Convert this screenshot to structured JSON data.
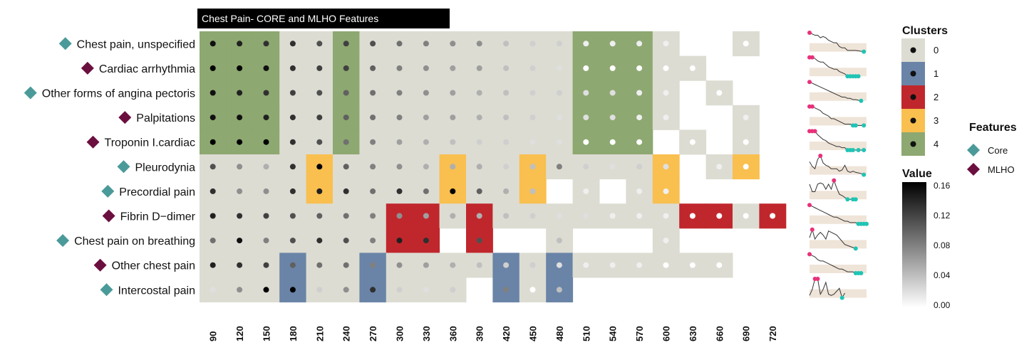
{
  "chart_data": {
    "type": "heatmap",
    "title": "Chest Pain- CORE and MLHO Features",
    "x_categories": [
      "90",
      "120",
      "150",
      "180",
      "210",
      "240",
      "270",
      "300",
      "330",
      "360",
      "390",
      "420",
      "450",
      "480",
      "510",
      "540",
      "570",
      "600",
      "630",
      "660",
      "690",
      "720"
    ],
    "rows": [
      {
        "label": "Chest pain, unspecified",
        "feature": "Core",
        "clusters": [
          4,
          4,
          4,
          0,
          0,
          4,
          0,
          0,
          0,
          0,
          0,
          0,
          0,
          0,
          4,
          4,
          4,
          0,
          null,
          null,
          0,
          null
        ],
        "values": [
          0.15,
          0.14,
          0.13,
          0.13,
          0.11,
          0.12,
          0.11,
          0.09,
          0.08,
          0.07,
          0.07,
          0.04,
          0.03,
          0.03,
          0.01,
          0.01,
          0.01,
          0.01,
          null,
          null,
          0.0,
          null
        ]
      },
      {
        "label": "Cardiac arrhythmia",
        "feature": "MLHO",
        "clusters": [
          4,
          4,
          4,
          0,
          0,
          4,
          0,
          0,
          0,
          0,
          0,
          0,
          0,
          0,
          4,
          4,
          4,
          0,
          0,
          null,
          null,
          null
        ],
        "values": [
          0.16,
          0.16,
          0.15,
          0.13,
          0.12,
          0.12,
          0.1,
          0.08,
          0.07,
          0.06,
          0.06,
          0.04,
          0.03,
          0.02,
          0.0,
          0.0,
          0.0,
          0.0,
          0.0,
          null,
          null,
          null
        ]
      },
      {
        "label": "Other forms of angina pectoris",
        "feature": "Core",
        "clusters": [
          4,
          4,
          4,
          0,
          0,
          4,
          0,
          0,
          0,
          0,
          0,
          0,
          0,
          0,
          4,
          4,
          4,
          0,
          null,
          0,
          null,
          null
        ],
        "values": [
          0.15,
          0.14,
          0.13,
          0.12,
          0.11,
          0.1,
          0.09,
          0.08,
          0.07,
          0.06,
          0.05,
          0.04,
          0.03,
          0.03,
          0.02,
          0.02,
          0.01,
          0.01,
          null,
          0.0,
          null,
          null
        ]
      },
      {
        "label": "Palpitations",
        "feature": "MLHO",
        "clusters": [
          4,
          4,
          4,
          0,
          0,
          4,
          0,
          0,
          0,
          0,
          0,
          0,
          0,
          0,
          4,
          4,
          4,
          0,
          null,
          null,
          0,
          null
        ],
        "values": [
          0.15,
          0.15,
          0.14,
          0.13,
          0.12,
          0.1,
          0.09,
          0.08,
          0.06,
          0.06,
          0.05,
          0.04,
          0.03,
          0.02,
          0.02,
          0.02,
          0.01,
          0.01,
          null,
          null,
          0.01,
          null
        ]
      },
      {
        "label": "Troponin I.cardiac",
        "feature": "MLHO",
        "clusters": [
          4,
          4,
          4,
          0,
          0,
          4,
          0,
          0,
          0,
          0,
          0,
          0,
          0,
          0,
          4,
          4,
          4,
          null,
          0,
          null,
          0,
          null
        ],
        "values": [
          0.16,
          0.16,
          0.16,
          0.13,
          0.11,
          0.09,
          0.08,
          0.06,
          0.05,
          0.04,
          0.03,
          0.03,
          0.02,
          0.02,
          0.0,
          0.0,
          0.0,
          null,
          0.0,
          null,
          0.0,
          null
        ]
      },
      {
        "label": "Pleurodynia",
        "feature": "Core",
        "clusters": [
          0,
          0,
          0,
          0,
          3,
          0,
          0,
          0,
          0,
          3,
          0,
          0,
          3,
          0,
          0,
          0,
          0,
          3,
          null,
          0,
          3,
          null
        ],
        "values": [
          0.11,
          0.07,
          0.05,
          0.13,
          0.16,
          0.1,
          0.08,
          0.07,
          0.05,
          0.05,
          0.05,
          0.03,
          0.04,
          0.08,
          0.03,
          0.02,
          0.03,
          0.02,
          null,
          0.01,
          0.0,
          null
        ]
      },
      {
        "label": "Precordial pain",
        "feature": "Core",
        "clusters": [
          0,
          0,
          0,
          0,
          3,
          0,
          0,
          0,
          0,
          3,
          0,
          0,
          3,
          null,
          0,
          null,
          0,
          3,
          null,
          null,
          null,
          null
        ],
        "values": [
          0.13,
          0.07,
          0.07,
          0.13,
          0.14,
          0.13,
          0.09,
          0.13,
          0.09,
          0.16,
          0.1,
          0.05,
          0.04,
          null,
          0.01,
          null,
          0.01,
          0.01,
          null,
          null,
          null,
          null
        ]
      },
      {
        "label": "Fibrin D−dimer",
        "feature": "MLHO",
        "clusters": [
          0,
          0,
          0,
          0,
          0,
          0,
          0,
          2,
          2,
          0,
          2,
          0,
          0,
          0,
          0,
          0,
          0,
          0,
          2,
          2,
          0,
          2
        ],
        "values": [
          0.14,
          0.13,
          0.12,
          0.11,
          0.1,
          0.09,
          0.08,
          0.07,
          0.06,
          0.05,
          0.05,
          0.04,
          0.03,
          0.02,
          0.02,
          0.01,
          0.01,
          0.01,
          0.0,
          0.0,
          0.0,
          0.0
        ]
      },
      {
        "label": "Chest pain on breathing",
        "feature": "Core",
        "clusters": [
          0,
          0,
          0,
          0,
          0,
          0,
          0,
          2,
          2,
          null,
          2,
          null,
          null,
          0,
          null,
          null,
          null,
          0,
          null,
          null,
          null,
          null
        ],
        "values": [
          0.09,
          0.15,
          0.08,
          0.11,
          0.13,
          0.11,
          0.08,
          0.14,
          0.13,
          null,
          0.11,
          null,
          null,
          0.04,
          null,
          null,
          null,
          0.01,
          null,
          null,
          null,
          null
        ]
      },
      {
        "label": "Other chest pain",
        "feature": "MLHO",
        "clusters": [
          0,
          0,
          0,
          1,
          0,
          0,
          1,
          0,
          0,
          0,
          0,
          1,
          0,
          1,
          0,
          0,
          0,
          0,
          0,
          0,
          null,
          null
        ],
        "values": [
          0.14,
          0.13,
          0.12,
          0.1,
          0.09,
          0.09,
          0.08,
          0.07,
          0.06,
          0.05,
          0.04,
          0.03,
          0.03,
          0.02,
          0.01,
          0.01,
          0.01,
          0.0,
          0.0,
          0.0,
          null,
          null
        ]
      },
      {
        "label": "Intercostal pain",
        "feature": "Core",
        "clusters": [
          0,
          0,
          0,
          1,
          0,
          0,
          1,
          0,
          0,
          0,
          null,
          1,
          0,
          1,
          null,
          null,
          null,
          null,
          null,
          null,
          null,
          null
        ],
        "values": [
          0.02,
          0.07,
          0.16,
          0.16,
          0.03,
          0.07,
          0.13,
          0.03,
          0.02,
          0.03,
          null,
          0.08,
          0.0,
          0.04,
          null,
          null,
          null,
          null,
          null,
          null,
          null,
          null
        ]
      }
    ],
    "legend_clusters": {
      "title": "Clusters",
      "items": [
        {
          "label": "0",
          "color": "#dcdcd2"
        },
        {
          "label": "1",
          "color": "#6a84a7"
        },
        {
          "label": "2",
          "color": "#c0272d"
        },
        {
          "label": "3",
          "color": "#f9bf4f"
        },
        {
          "label": "4",
          "color": "#8da871"
        }
      ]
    },
    "legend_features": {
      "title": "Features",
      "items": [
        {
          "label": "Core",
          "color": "#4b9a9a"
        },
        {
          "label": "MLHO",
          "color": "#6b0f3f"
        }
      ]
    },
    "legend_value": {
      "title": "Value",
      "ticks": [
        "0.16",
        "0.12",
        "0.08",
        "0.04",
        "0.00"
      ],
      "range": [
        0,
        0.16
      ]
    },
    "sparkline_colors": {
      "line": "#333333",
      "max": "#e8317a",
      "min": "#1fc4b4",
      "band": "#efe4d8"
    }
  }
}
